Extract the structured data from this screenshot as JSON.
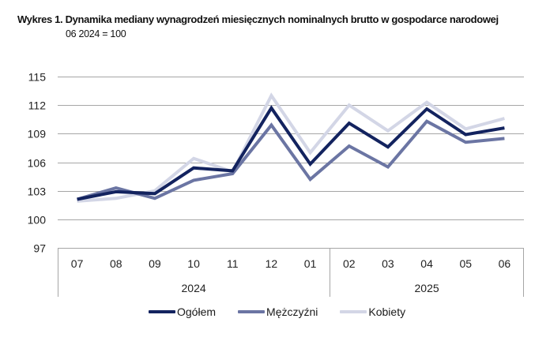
{
  "header": {
    "title": "Wykres 1. Dynamika mediany wynagrodzeń miesięcznych nominalnych brutto w gospodarce narodowej",
    "subtitle": "06 2024 = 100"
  },
  "legend": {
    "items": [
      {
        "label": "Ogółem",
        "color": "#13235f"
      },
      {
        "label": "Mężczyźni",
        "color": "#6b75a3"
      },
      {
        "label": "Kobiety",
        "color": "#d3d6e6"
      }
    ]
  },
  "chart_data": {
    "type": "line",
    "title": "Wykres 1. Dynamika mediany wynagrodzeń miesięcznych nominalnych brutto w gospodarce narodowej",
    "subtitle": "06 2024 = 100",
    "xlabel": "",
    "ylabel": "",
    "categories": [
      "07",
      "08",
      "09",
      "10",
      "11",
      "12",
      "01",
      "02",
      "03",
      "04",
      "05",
      "06"
    ],
    "category_groups": [
      {
        "label": "2024",
        "span": 7
      },
      {
        "label": "2025",
        "span": 5
      }
    ],
    "ylim": [
      97,
      115
    ],
    "yticks": [
      97,
      100,
      103,
      106,
      109,
      112,
      115
    ],
    "grid": true,
    "legend_position": "bottom",
    "series": [
      {
        "name": "Kobiety",
        "color": "#d3d6e6",
        "values": [
          101.9,
          102.2,
          103.0,
          106.4,
          105.0,
          113.0,
          107.0,
          112.0,
          109.3,
          112.3,
          109.5,
          110.6
        ]
      },
      {
        "name": "Mężczyźni",
        "color": "#6b75a3",
        "values": [
          102.1,
          103.3,
          102.2,
          104.1,
          104.8,
          109.9,
          104.2,
          107.7,
          105.5,
          110.3,
          108.1,
          108.5
        ]
      },
      {
        "name": "Ogółem",
        "color": "#13235f",
        "values": [
          102.1,
          102.9,
          102.7,
          105.4,
          105.1,
          111.7,
          105.8,
          110.1,
          107.6,
          111.6,
          108.9,
          109.6
        ]
      }
    ]
  }
}
